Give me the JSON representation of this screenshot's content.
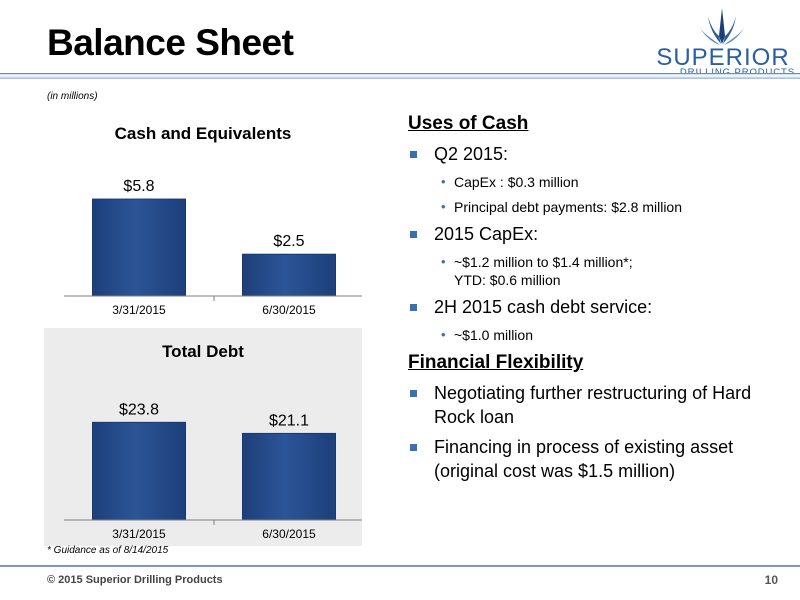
{
  "header": {
    "title": "Balance Sheet",
    "logo_word": "SUPERIOR",
    "logo_sub": "DRILLING PRODUCTS"
  },
  "units_note": "(in millions)",
  "footnote": "* Guidance as of 8/14/2015",
  "footer": {
    "copyright": "© 2015 Superior Drilling Products",
    "page_number": "10"
  },
  "colors": {
    "bar_fill": "#2c5597",
    "bar_edge": "#163a72",
    "accent": "#3b6fb0",
    "logo": "#2a5ea0"
  },
  "chart_data": [
    {
      "type": "bar",
      "title": "Cash and Equivalents",
      "categories": [
        "3/31/2015",
        "6/30/2015"
      ],
      "values": [
        5.8,
        2.5
      ],
      "labels": [
        "$5.8",
        "$2.5"
      ],
      "ylim": [
        0,
        7.3
      ],
      "grid": false,
      "legend": "none"
    },
    {
      "type": "bar",
      "title": "Total Debt",
      "categories": [
        "3/31/2015",
        "6/30/2015"
      ],
      "values": [
        23.8,
        21.1
      ],
      "labels": [
        "$23.8",
        "$21.1"
      ],
      "ylim": [
        0,
        29
      ],
      "grid": false,
      "legend": "none"
    }
  ],
  "uses_of_cash": {
    "heading": "Uses of Cash",
    "items": [
      {
        "text": "Q2 2015:",
        "subs": [
          "CapEx :  $0.3 million",
          "Principal debt payments: $2.8 million"
        ]
      },
      {
        "text": "2015 CapEx:",
        "subs": [
          "~$1.2 million to $1.4 million*;",
          "YTD:  $0.6 million"
        ]
      },
      {
        "text": "2H 2015 cash debt service:",
        "subs": [
          "~$1.0 million"
        ]
      }
    ]
  },
  "financial_flexibility": {
    "heading": "Financial Flexibility",
    "items": [
      {
        "text": "Negotiating further restructuring of Hard Rock loan"
      },
      {
        "text": "Financing in process of existing asset (original cost was $1.5 million)"
      }
    ]
  }
}
